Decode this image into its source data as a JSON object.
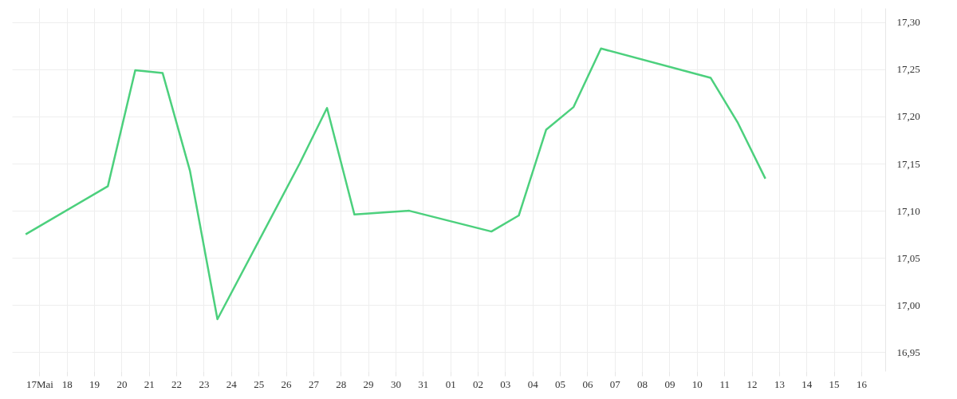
{
  "chart_data": {
    "type": "line",
    "x": [
      "--05-16T12:00",
      "--05-19T12:00",
      "--05-20T12:00",
      "--05-21T12:00",
      "--05-22T12:00",
      "--05-23T12:00",
      "--05-26T12:00",
      "--05-27T12:00",
      "--05-28T12:00",
      "--05-30T12:00",
      "--06-02T12:00",
      "--06-03T12:00",
      "--06-04T12:00",
      "--06-05T12:00",
      "--06-06T12:00",
      "--06-10T12:00",
      "--06-11T12:00",
      "--06-12T12:00"
    ],
    "series": [
      {
        "color": "#4cd07d",
        "values": [
          17.075,
          17.126,
          17.249,
          17.246,
          17.142,
          16.985,
          17.15,
          17.209,
          17.096,
          17.1,
          17.078,
          17.095,
          17.186,
          17.21,
          17.272,
          17.241,
          17.193,
          17.134
        ]
      }
    ],
    "xlim": [
      "--05-16",
      "--06-16T21:00"
    ],
    "xticks": [
      {
        "value": "--05-17",
        "label": "17Mai"
      },
      {
        "value": "--05-18",
        "label": "18"
      },
      {
        "value": "--05-19",
        "label": "19"
      },
      {
        "value": "--05-20",
        "label": "20"
      },
      {
        "value": "--05-21",
        "label": "21"
      },
      {
        "value": "--05-22",
        "label": "22"
      },
      {
        "value": "--05-23",
        "label": "23"
      },
      {
        "value": "--05-24",
        "label": "24"
      },
      {
        "value": "--05-25",
        "label": "25"
      },
      {
        "value": "--05-26",
        "label": "26"
      },
      {
        "value": "--05-27",
        "label": "27"
      },
      {
        "value": "--05-28",
        "label": "28"
      },
      {
        "value": "--05-29",
        "label": "29"
      },
      {
        "value": "--05-30",
        "label": "30"
      },
      {
        "value": "--05-31",
        "label": "31"
      },
      {
        "value": "--06-01",
        "label": "01"
      },
      {
        "value": "--06-02",
        "label": "02"
      },
      {
        "value": "--06-03",
        "label": "03"
      },
      {
        "value": "--06-04",
        "label": "04"
      },
      {
        "value": "--06-05",
        "label": "05"
      },
      {
        "value": "--06-06",
        "label": "06"
      },
      {
        "value": "--06-07",
        "label": "07"
      },
      {
        "value": "--06-08",
        "label": "08"
      },
      {
        "value": "--06-09",
        "label": "09"
      },
      {
        "value": "--06-10",
        "label": "10"
      },
      {
        "value": "--06-11",
        "label": "11"
      },
      {
        "value": "--06-12",
        "label": "12"
      },
      {
        "value": "--06-13",
        "label": "13"
      },
      {
        "value": "--06-14",
        "label": "14"
      },
      {
        "value": "--06-15",
        "label": "15"
      },
      {
        "value": "--06-16",
        "label": "16"
      }
    ],
    "ylim": [
      16.93,
      17.315
    ],
    "yticks": [
      {
        "value": 16.95,
        "label": "16,95"
      },
      {
        "value": 17.0,
        "label": "17,00"
      },
      {
        "value": 17.05,
        "label": "17,05"
      },
      {
        "value": 17.1,
        "label": "17,10"
      },
      {
        "value": 17.15,
        "label": "17,15"
      },
      {
        "value": 17.2,
        "label": "17,20"
      },
      {
        "value": 17.25,
        "label": "17,25"
      },
      {
        "value": 17.3,
        "label": "17,30"
      }
    ],
    "grid": true,
    "line_style": "solid",
    "marker": "none"
  }
}
